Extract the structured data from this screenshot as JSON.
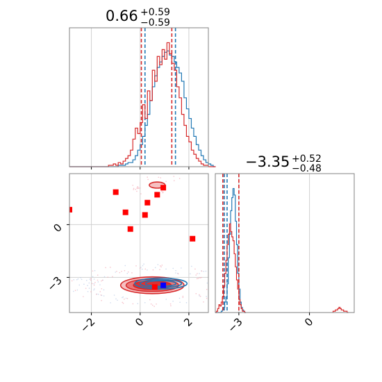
{
  "chart_data": [
    {
      "panel": "marginal-x",
      "type": "histogram",
      "title": {
        "median": "0.66",
        "plus": "+0.59",
        "minus": "−0.59"
      },
      "xlim": [
        -2.9,
        2.8
      ],
      "grid": true,
      "series": [
        {
          "color": "#1f77b4",
          "lines": [
            0.2,
            1.45
          ],
          "bins": {
            "start": -2.9,
            "width": 0.1,
            "counts": [
              0,
              0,
              0,
              0,
              0,
              0,
              0,
              0,
              0,
              0,
              0,
              0,
              0,
              0,
              0,
              0,
              0,
              0,
              0,
              0,
              1,
              1,
              1,
              2,
              3,
              3,
              5,
              8,
              12,
              16,
              22,
              30,
              38,
              48,
              58,
              66,
              72,
              76,
              80,
              83,
              84,
              81,
              80,
              76,
              72,
              68,
              62,
              50,
              42,
              35,
              28,
              22,
              16,
              12,
              8,
              5,
              3,
              2,
              1,
              0
            ]
          }
        },
        {
          "color": "#d62728",
          "lines": [
            0.05,
            1.3
          ],
          "bins": {
            "start": -2.9,
            "width": 0.1,
            "counts": [
              0,
              0,
              0,
              0,
              0,
              0,
              0,
              0,
              0,
              0,
              0,
              0,
              0,
              0,
              0,
              0,
              1,
              1,
              2,
              1,
              3,
              2,
              4,
              6,
              8,
              12,
              20,
              28,
              24,
              32,
              45,
              35,
              55,
              48,
              70,
              62,
              80,
              74,
              85,
              78,
              90,
              82,
              75,
              70,
              58,
              50,
              38,
              30,
              22,
              18,
              12,
              9,
              6,
              4,
              2,
              1,
              1,
              0,
              0,
              0
            ]
          }
        }
      ]
    },
    {
      "panel": "marginal-y",
      "type": "histogram",
      "title": {
        "median": "−3.35",
        "plus": "+0.52",
        "minus": "−0.48"
      },
      "xlim": [
        -4.0,
        1.9
      ],
      "grid": true,
      "series": [
        {
          "color": "#1f77b4",
          "lines": [
            -3.62,
            -3.5
          ],
          "bins": {
            "start": -4.0,
            "width": 0.05,
            "counts": [
              0,
              0,
              0,
              0,
              0,
              1,
              2,
              4,
              8,
              12,
              22,
              42,
              60,
              78,
              88,
              95,
              90,
              70,
              52,
              30,
              18,
              8,
              4,
              2,
              1,
              0
            ]
          }
        },
        {
          "color": "#d62728",
          "lines": [
            -3.68,
            -3.0
          ],
          "bins": {
            "start": -4.0,
            "width": 0.05,
            "counts": [
              0,
              1,
              3,
              6,
              5,
              8,
              12,
              20,
              30,
              40,
              52,
              60,
              68,
              62,
              58,
              55,
              45,
              35,
              25,
              18,
              10,
              6,
              3,
              1,
              1,
              0
            ]
          }
        },
        {
          "color": "#d62728",
          "role": "tail",
          "lines": [],
          "bins": {
            "start": 1.0,
            "width": 0.05,
            "counts": [
              1,
              1,
              2,
              2,
              3,
              4,
              3,
              2,
              2,
              1,
              1,
              1,
              0
            ]
          }
        }
      ]
    },
    {
      "panel": "joint",
      "type": "scatter",
      "xlim": [
        -2.9,
        2.8
      ],
      "ylim": [
        -5.0,
        2.9
      ],
      "grid": true,
      "contours": [
        {
          "color": "#d62728",
          "center": [
            0.5,
            -3.45
          ],
          "radii": [
            [
              2.6,
              0.95
            ],
            [
              2.15,
              0.7
            ],
            [
              1.55,
              0.48
            ]
          ]
        },
        {
          "color": "#1f77b4",
          "center": [
            0.85,
            -3.35
          ],
          "radii": [
            [
              2.15,
              0.62
            ],
            [
              1.7,
              0.45
            ],
            [
              1.25,
              0.32
            ]
          ]
        },
        {
          "color": "#d62728",
          "center": [
            0.7,
            2.25
          ],
          "radii": [
            [
              0.65,
              0.35
            ]
          ]
        }
      ],
      "red_points": [
        [
          -1.0,
          1.85
        ],
        [
          0.7,
          1.7
        ],
        [
          0.95,
          2.1
        ],
        [
          0.3,
          1.25
        ],
        [
          -0.6,
          0.7
        ],
        [
          0.2,
          0.55
        ],
        [
          -0.4,
          -0.25
        ],
        [
          2.15,
          -0.8
        ],
        [
          0.6,
          -3.55
        ],
        [
          -2.9,
          0.85
        ]
      ],
      "blue_points": [
        [
          0.95,
          -3.45
        ]
      ],
      "x_ticks": [
        "−2",
        "0",
        "2"
      ],
      "x_tick_values": [
        -2,
        0,
        2
      ],
      "y_ticks": [
        "0",
        "−3"
      ],
      "y_tick_values": [
        0,
        -3
      ]
    }
  ],
  "marginal_y_ticks": {
    "labels": [
      "−3",
      "0"
    ],
    "values": [
      -3,
      0
    ]
  }
}
